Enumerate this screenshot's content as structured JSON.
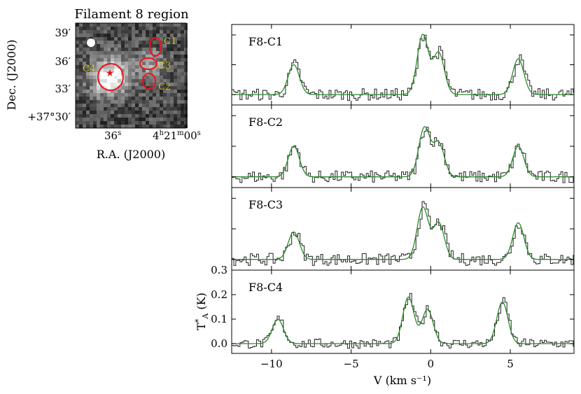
{
  "map_panel": {
    "title": "Filament 8 region",
    "ra_label": "R.A. (J2000)",
    "dec_label": "Dec. (J2000)",
    "ra_ticks": [
      "36",
      "4",
      "21",
      "00"
    ],
    "ra_tick_units": [
      "s",
      "h",
      "m",
      "s"
    ],
    "dec_ticks": [
      "39′",
      "36′",
      "33′",
      "+37°30′"
    ],
    "ellipses": [
      "C1",
      "C2",
      "C3",
      "C4"
    ],
    "colors": {
      "ellipse": "#e8141c",
      "label": "#d4c21a",
      "star": "#e8141c"
    }
  },
  "chart_data": {
    "type": "line",
    "x_label": "V (km s⁻¹)",
    "y_label": "T*A (K)",
    "xlim": [
      -12.5,
      9
    ],
    "x_ticks": [
      "−10",
      "−5",
      "0",
      "5"
    ],
    "y_ticks": [
      "0.0",
      "0.1",
      "0.2",
      "0.3"
    ],
    "ylim_bottom_panel": [
      -0.04,
      0.3
    ],
    "colors": {
      "data": "#222222",
      "fit": "#2a8a2a"
    },
    "panels": [
      {
        "label": "F8-C1",
        "components": [
          {
            "v": -8.6,
            "amp": 0.1
          },
          {
            "v": -0.5,
            "amp": 0.2
          },
          {
            "v": 0.5,
            "amp": 0.14
          },
          {
            "v": 5.5,
            "amp": 0.12
          }
        ]
      },
      {
        "label": "F8-C2",
        "components": [
          {
            "v": -8.6,
            "amp": 0.1
          },
          {
            "v": -0.4,
            "amp": 0.16
          },
          {
            "v": 0.5,
            "amp": 0.11
          },
          {
            "v": 5.5,
            "amp": 0.1
          }
        ]
      },
      {
        "label": "F8-C3",
        "components": [
          {
            "v": -8.6,
            "amp": 0.09
          },
          {
            "v": -0.5,
            "amp": 0.17
          },
          {
            "v": 0.5,
            "amp": 0.12
          },
          {
            "v": 5.5,
            "amp": 0.12
          }
        ]
      },
      {
        "label": "F8-C4",
        "components": [
          {
            "v": -9.6,
            "amp": 0.1
          },
          {
            "v": -1.4,
            "amp": 0.19
          },
          {
            "v": -0.2,
            "amp": 0.14
          },
          {
            "v": 4.5,
            "amp": 0.17
          }
        ]
      }
    ]
  }
}
